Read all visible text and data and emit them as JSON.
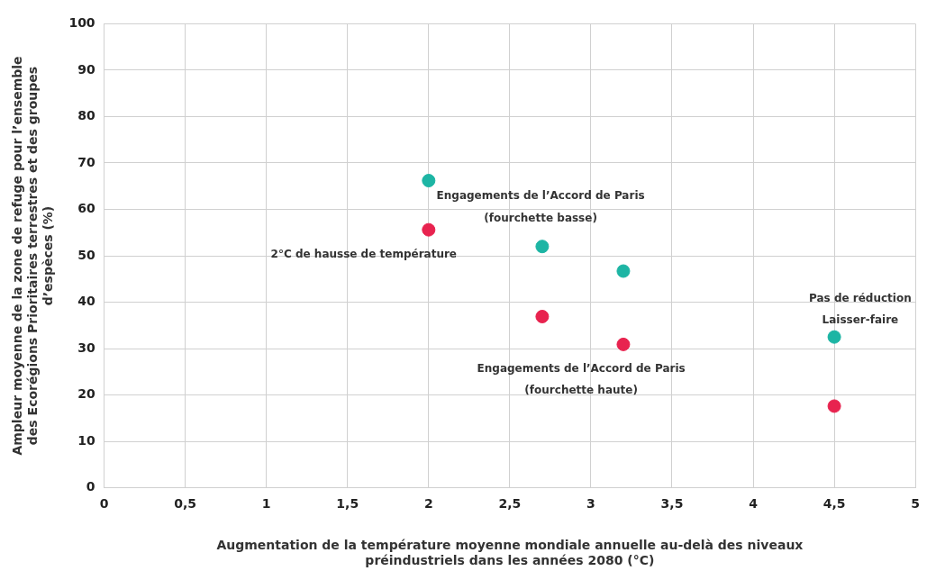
{
  "chart_data": {
    "type": "scatter",
    "xlabel": "Augmentation de la température moyenne mondiale annuelle au-delà des niveaux\npréindustriels dans les années 2080 (°C)",
    "ylabel": "Ampleur moyenne de la zone de refuge pour l’ensemble\ndes Ecorégions Prioritaires terrestres et des groupes\nd’espèces (%)",
    "xlim": [
      0,
      5
    ],
    "xticks": [
      0,
      {
        "value": 0.5,
        "label": "0,5"
      },
      1,
      {
        "value": 1.5,
        "label": "1,5"
      },
      2,
      {
        "value": 2.5,
        "label": "2,5"
      },
      3,
      {
        "value": 3.5,
        "label": "3,5"
      },
      4,
      {
        "value": 4.5,
        "label": "4,5"
      },
      5
    ],
    "ylim": [
      0,
      100
    ],
    "yticks": [
      0,
      10,
      20,
      30,
      40,
      50,
      60,
      70,
      80,
      90,
      100
    ],
    "grid": true,
    "legend": false,
    "marker": "circle",
    "series": [
      {
        "color": "#1db5a4",
        "x": [
          2,
          2.7,
          3.2,
          4.5
        ],
        "values": [
          66.2,
          52,
          46.7,
          32.5
        ]
      },
      {
        "color": "#e8234f",
        "x": [
          2,
          2.7,
          3.2,
          4.5
        ],
        "values": [
          55.6,
          36.9,
          30.9,
          17.6
        ]
      }
    ],
    "annotations": [
      "Engagements de l’Accord de Paris",
      "(fourchette basse)",
      "2°C de hausse de température",
      "Pas de réduction",
      "Laisser-faire",
      "Engagements de l’Accord de Paris",
      "(fourchette haute)"
    ]
  }
}
